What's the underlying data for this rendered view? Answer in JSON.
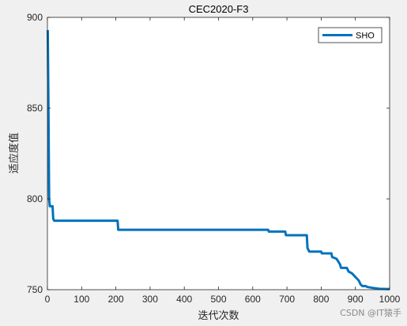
{
  "chart_data": {
    "type": "line",
    "title": "CEC2020-F3",
    "xlabel": "迭代次数",
    "ylabel": "适应度值",
    "xlim": [
      0,
      1000
    ],
    "ylim": [
      750,
      900
    ],
    "xticks": [
      0,
      100,
      200,
      300,
      400,
      500,
      600,
      700,
      800,
      900,
      1000
    ],
    "yticks": [
      750,
      800,
      850,
      900
    ],
    "grid": false,
    "legend": {
      "position": "top-right"
    },
    "series": [
      {
        "name": "SHO",
        "color": "#0072bd",
        "points": [
          [
            1,
            893
          ],
          [
            3,
            850
          ],
          [
            5,
            800
          ],
          [
            7,
            796
          ],
          [
            15,
            796
          ],
          [
            17,
            789
          ],
          [
            20,
            788
          ],
          [
            205,
            788
          ],
          [
            207,
            783
          ],
          [
            645,
            783
          ],
          [
            647,
            782
          ],
          [
            695,
            782
          ],
          [
            697,
            780
          ],
          [
            758,
            780
          ],
          [
            760,
            773
          ],
          [
            765,
            771
          ],
          [
            800,
            771
          ],
          [
            802,
            770
          ],
          [
            830,
            770
          ],
          [
            832,
            768
          ],
          [
            845,
            767
          ],
          [
            855,
            764
          ],
          [
            858,
            762
          ],
          [
            875,
            762
          ],
          [
            880,
            760
          ],
          [
            890,
            759
          ],
          [
            900,
            757
          ],
          [
            910,
            755
          ],
          [
            915,
            753
          ],
          [
            920,
            752
          ],
          [
            930,
            752
          ],
          [
            935,
            751.5
          ],
          [
            950,
            751
          ],
          [
            970,
            750.5
          ],
          [
            1000,
            750.3
          ]
        ]
      }
    ]
  },
  "watermark": "CSDN @IT猿手"
}
